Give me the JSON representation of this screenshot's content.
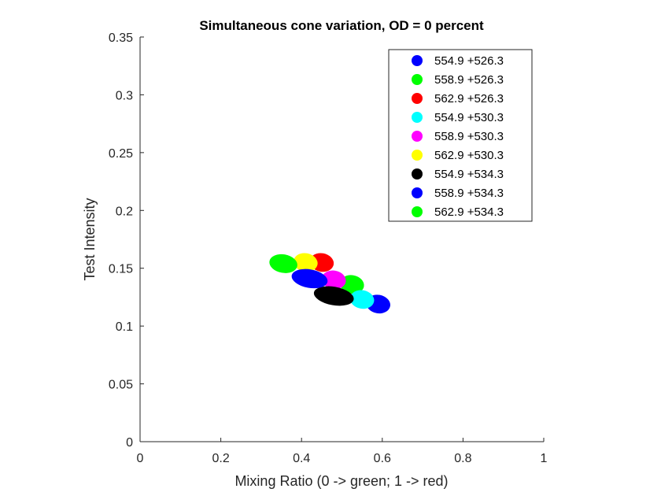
{
  "chart_data": {
    "type": "scatter",
    "title": "Simultaneous cone variation, OD = 0 percent",
    "xlabel": "Mixing Ratio (0 -> green; 1 -> red)",
    "ylabel": "Test Intensity",
    "xlim": [
      0,
      1
    ],
    "ylim": [
      0,
      0.35
    ],
    "xticks": [
      "0",
      "0.2",
      "0.4",
      "0.6",
      "0.8",
      "1"
    ],
    "yticks": [
      "0",
      "0.05",
      "0.1",
      "0.15",
      "0.2",
      "0.25",
      "0.3",
      "0.35"
    ],
    "grid": false,
    "legend_position": "top-right",
    "series": [
      {
        "name": "554.9 +526.3",
        "color": "#0000ff",
        "x": 0.59,
        "y": 0.119,
        "rx": 0.03,
        "ry": 0.008
      },
      {
        "name": "558.9 +526.3",
        "color": "#00ff00",
        "x": 0.525,
        "y": 0.136,
        "rx": 0.03,
        "ry": 0.008
      },
      {
        "name": "562.9 +526.3",
        "color": "#ff0000",
        "x": 0.45,
        "y": 0.155,
        "rx": 0.03,
        "ry": 0.008
      },
      {
        "name": "554.9 +530.3",
        "color": "#00ffff",
        "x": 0.55,
        "y": 0.123,
        "rx": 0.03,
        "ry": 0.008
      },
      {
        "name": "558.9 +530.3",
        "color": "#ff00ff",
        "x": 0.48,
        "y": 0.14,
        "rx": 0.03,
        "ry": 0.008
      },
      {
        "name": "562.9 +530.3",
        "color": "#ffff00",
        "x": 0.41,
        "y": 0.155,
        "rx": 0.03,
        "ry": 0.008
      },
      {
        "name": "554.9 +534.3",
        "color": "#000000",
        "x": 0.48,
        "y": 0.126,
        "rx": 0.05,
        "ry": 0.008
      },
      {
        "name": "558.9 +534.3",
        "color": "#0000ff",
        "x": 0.42,
        "y": 0.141,
        "rx": 0.045,
        "ry": 0.008
      },
      {
        "name": "562.9 +534.3",
        "color": "#00ff00",
        "x": 0.355,
        "y": 0.154,
        "rx": 0.035,
        "ry": 0.008
      }
    ]
  }
}
